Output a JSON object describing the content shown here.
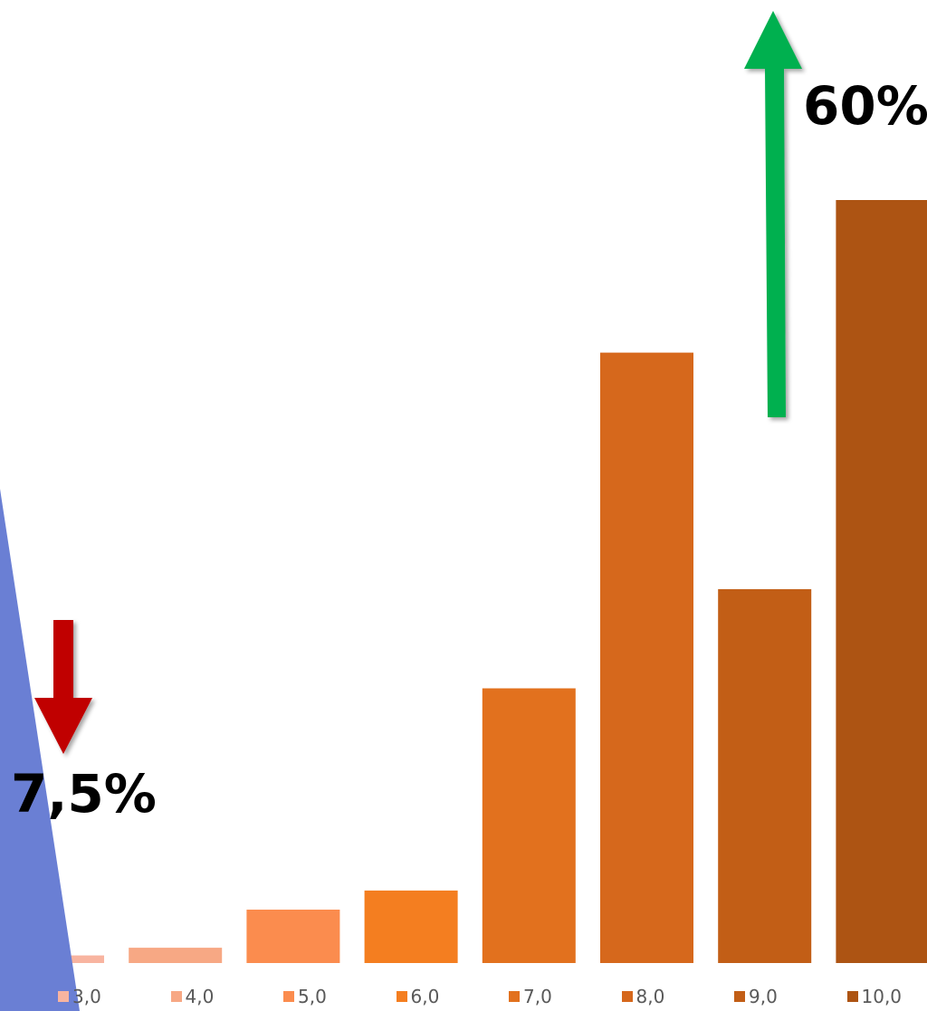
{
  "chart_data": {
    "type": "bar",
    "title": "",
    "xlabel": "",
    "ylabel": "",
    "categories": [
      "3,0",
      "4,0",
      "5,0",
      "6,0",
      "7,0",
      "8,0",
      "9,0",
      "10,0"
    ],
    "values": [
      1,
      2,
      7,
      9.5,
      36,
      80,
      49,
      100
    ],
    "ylim": [
      0,
      100
    ],
    "colors": [
      "#f8b4a0",
      "#f7a884",
      "#fb8c4e",
      "#f47e20",
      "#e2711e",
      "#d6681c",
      "#c25e16",
      "#ad5413"
    ],
    "legend_position": "bottom",
    "annotations": [
      {
        "id": "up",
        "text": "60%",
        "arrow": "up",
        "color": "#00b050"
      },
      {
        "id": "down",
        "text": "7,5%",
        "arrow": "down",
        "color": "#c00000"
      }
    ],
    "decoration_color": "#6a7fd4"
  }
}
